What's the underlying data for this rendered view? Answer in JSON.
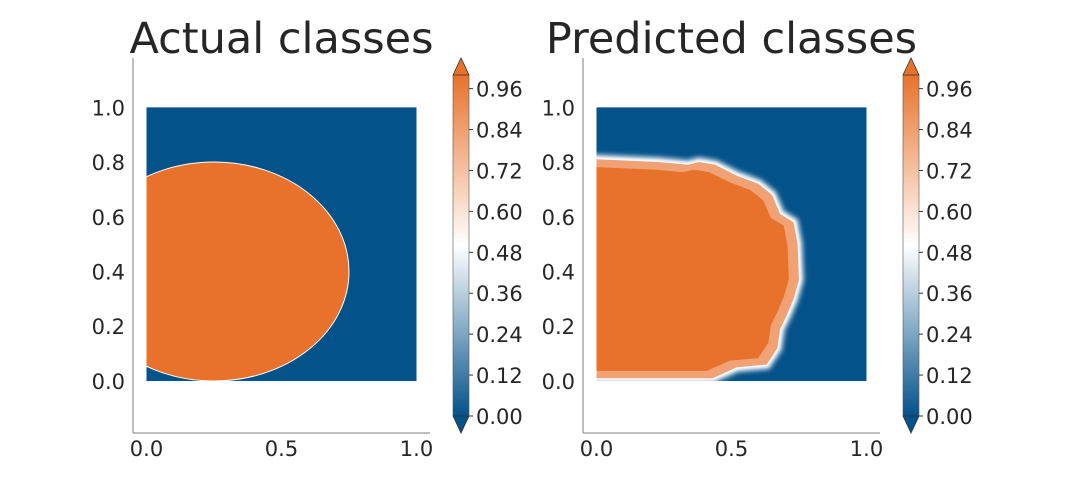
{
  "colors": {
    "low": "#04528a",
    "mid": "#ffffff",
    "high": "#e8722b",
    "spine": "#7f7f7f"
  },
  "chart_data": [
    {
      "type": "heatmap",
      "title": "Actual classes",
      "xlim": [
        -0.05,
        1.05
      ],
      "ylim": [
        -0.19,
        1.18
      ],
      "xticks": [
        "0.0",
        "0.5",
        "1.0"
      ],
      "yticks": [
        "0.0",
        "0.2",
        "0.4",
        "0.6",
        "0.8",
        "1.0"
      ],
      "background_value": 0,
      "region": {
        "shape": "ellipse",
        "center": [
          0.25,
          0.4
        ],
        "radii": [
          0.5,
          0.4
        ],
        "value": 1
      },
      "colorbar": {
        "ticks": [
          "0.00",
          "0.12",
          "0.24",
          "0.36",
          "0.48",
          "0.60",
          "0.72",
          "0.84",
          "0.96"
        ],
        "range": [
          0,
          1
        ],
        "extend": "both"
      }
    },
    {
      "type": "heatmap",
      "title": "Predicted classes",
      "xlim": [
        -0.05,
        1.05
      ],
      "ylim": [
        -0.19,
        1.18
      ],
      "xticks": [
        "0.0",
        "0.5",
        "1.0"
      ],
      "yticks": [
        "0.0",
        "0.2",
        "0.4",
        "0.6",
        "0.8",
        "1.0"
      ],
      "background_value": 0,
      "region": {
        "shape": "polygon",
        "value": 1,
        "points": [
          [
            0,
            0.81
          ],
          [
            0.23,
            0.8
          ],
          [
            0.34,
            0.79
          ],
          [
            0.38,
            0.8
          ],
          [
            0.44,
            0.79
          ],
          [
            0.52,
            0.75
          ],
          [
            0.6,
            0.72
          ],
          [
            0.65,
            0.68
          ],
          [
            0.68,
            0.61
          ],
          [
            0.73,
            0.58
          ],
          [
            0.745,
            0.5
          ],
          [
            0.75,
            0.37
          ],
          [
            0.73,
            0.3
          ],
          [
            0.705,
            0.24
          ],
          [
            0.68,
            0.19
          ],
          [
            0.67,
            0.12
          ],
          [
            0.63,
            0.06
          ],
          [
            0.52,
            0.05
          ],
          [
            0.43,
            0.01
          ],
          [
            0,
            0.01
          ]
        ]
      },
      "colorbar": {
        "ticks": [
          "0.00",
          "0.12",
          "0.24",
          "0.36",
          "0.48",
          "0.60",
          "0.72",
          "0.84",
          "0.96"
        ],
        "range": [
          0,
          1
        ],
        "extend": "both"
      }
    }
  ]
}
